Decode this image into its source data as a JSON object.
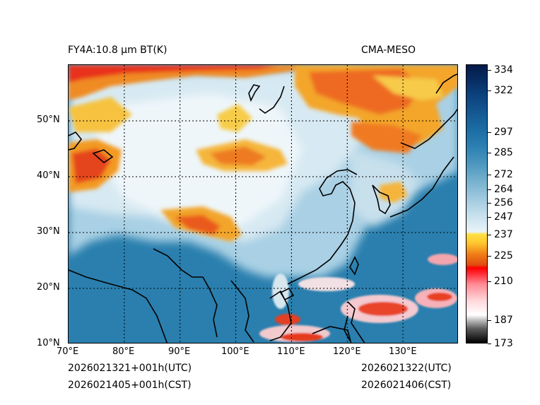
{
  "header": {
    "title_left": "FY4A:10.8 μm BT(K)",
    "title_right": "CMA-MESO"
  },
  "map": {
    "lon_labels": [
      "70°E",
      "80°E",
      "90°E",
      "100°E",
      "110°E",
      "120°E",
      "130°E"
    ],
    "lat_labels": [
      "50°N",
      "40°N",
      "30°N",
      "20°N",
      "10°N"
    ],
    "lon_range": [
      70,
      140
    ],
    "lat_range": [
      10,
      60
    ]
  },
  "colorbar": {
    "labels": [
      "334",
      "322",
      "297",
      "285",
      "272",
      "264",
      "256",
      "247",
      "237",
      "225",
      "210",
      "187",
      "173"
    ],
    "range": [
      173,
      334
    ]
  },
  "footer": {
    "left_line1": "2026021321+001h(UTC)",
    "left_line2": "2026021405+001h(CST)",
    "right_line1": "2026021322(UTC)",
    "right_line2": "2026021406(CST)"
  },
  "colors": {
    "ocean_warm": "#2a7fae",
    "land_cool": "#9fc9df",
    "cold_cloud": "#f59a1e",
    "very_cold": "#e8321c",
    "coastline": "#000000"
  }
}
